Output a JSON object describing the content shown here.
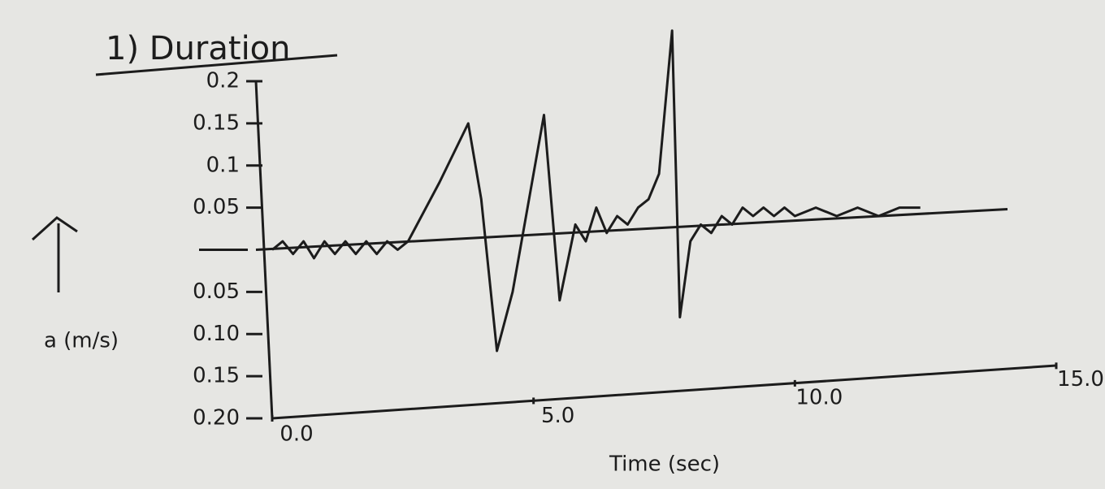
{
  "chart_data": {
    "type": "line",
    "title": "1) Duration",
    "x_label": "Time (sec)",
    "y_label": "a (m/s)",
    "color": "#1c1c1c",
    "grid": false,
    "xlim": [
      0,
      15
    ],
    "ylim": [
      -0.2,
      0.2
    ],
    "xticks": [
      {
        "value": 0,
        "label": "0.0"
      },
      {
        "value": 5,
        "label": "5.0"
      },
      {
        "value": 10,
        "label": "10.0"
      },
      {
        "value": 15,
        "label": "15.0"
      }
    ],
    "yticks": [
      0.2,
      0.15,
      0.1,
      0.05,
      {
        "value": -0.05,
        "label": "0.05"
      },
      {
        "value": -0.1,
        "label": "0.10"
      },
      {
        "value": -0.15,
        "label": "0.15"
      },
      {
        "value": -0.2,
        "label": "0.20"
      }
    ],
    "x": [
      0,
      0.2,
      0.4,
      0.6,
      0.8,
      1.0,
      1.2,
      1.4,
      1.6,
      1.8,
      2.0,
      2.2,
      2.4,
      2.6,
      3.2,
      3.75,
      4.0,
      4.3,
      4.6,
      5.2,
      5.5,
      5.8,
      6.0,
      6.2,
      6.4,
      6.6,
      6.8,
      7.0,
      7.2,
      7.4,
      7.65,
      7.8,
      8.0,
      8.2,
      8.4,
      8.6,
      8.8,
      9.0,
      9.2,
      9.4,
      9.6,
      9.8,
      10.0,
      10.4,
      10.8,
      11.2,
      11.6,
      12.0,
      12.4
    ],
    "values": [
      0,
      0.01,
      -0.005,
      0.01,
      -0.01,
      0.01,
      -0.005,
      0.01,
      -0.005,
      0.01,
      -0.005,
      0.01,
      0,
      0.01,
      0.08,
      0.15,
      0.06,
      -0.12,
      -0.05,
      0.16,
      -0.06,
      0.03,
      0.01,
      0.05,
      0.02,
      0.04,
      0.03,
      0.05,
      0.06,
      0.09,
      0.26,
      -0.08,
      0.01,
      0.03,
      0.02,
      0.04,
      0.03,
      0.05,
      0.04,
      0.05,
      0.04,
      0.05,
      0.04,
      0.05,
      0.04,
      0.05,
      0.04,
      0.05,
      0.05
    ]
  }
}
